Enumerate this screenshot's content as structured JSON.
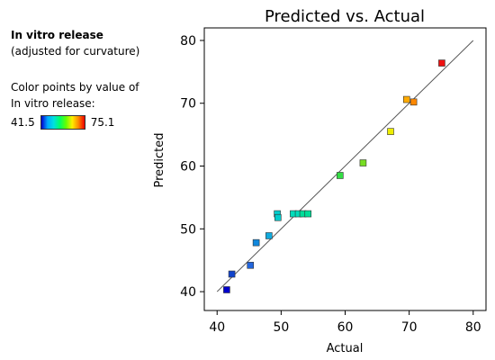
{
  "legend": {
    "title": "In vitro release",
    "subtitle": "(adjusted for curvature)",
    "caption_line1": "Color points by value of",
    "caption_line2": "In vitro release:",
    "min_label": "41.5",
    "max_label": "75.1"
  },
  "colors": {
    "frame": "#000000",
    "fit_line": "#555555",
    "point_border": "#333333"
  },
  "chart_data": {
    "type": "scatter",
    "title": "Predicted vs. Actual",
    "xlabel": "Actual",
    "ylabel": "Predicted",
    "xlim": [
      38,
      82
    ],
    "ylim": [
      37,
      82
    ],
    "xticks": [
      40,
      50,
      60,
      70,
      80
    ],
    "yticks": [
      40,
      50,
      60,
      70,
      80
    ],
    "grid": false,
    "reference_line": {
      "from": [
        40,
        40
      ],
      "to": [
        80,
        80
      ]
    },
    "points": [
      {
        "x": 41.5,
        "y": 40.3,
        "color": "#0000cc"
      },
      {
        "x": 42.3,
        "y": 42.8,
        "color": "#1144cc"
      },
      {
        "x": 45.2,
        "y": 44.2,
        "color": "#2266dd"
      },
      {
        "x": 46.1,
        "y": 47.8,
        "color": "#1188dd"
      },
      {
        "x": 48.1,
        "y": 48.9,
        "color": "#11aadd"
      },
      {
        "x": 49.4,
        "y": 52.4,
        "color": "#00cccc"
      },
      {
        "x": 49.5,
        "y": 51.8,
        "color": "#00cccc"
      },
      {
        "x": 51.9,
        "y": 52.4,
        "color": "#00ddbb"
      },
      {
        "x": 52.7,
        "y": 52.4,
        "color": "#00ddbb"
      },
      {
        "x": 53.4,
        "y": 52.4,
        "color": "#00dd99"
      },
      {
        "x": 54.2,
        "y": 52.4,
        "color": "#00dd99"
      },
      {
        "x": 59.2,
        "y": 58.5,
        "color": "#33dd44"
      },
      {
        "x": 62.8,
        "y": 60.5,
        "color": "#77dd22"
      },
      {
        "x": 67.1,
        "y": 65.5,
        "color": "#eeee00"
      },
      {
        "x": 69.6,
        "y": 70.6,
        "color": "#ffaa00"
      },
      {
        "x": 70.7,
        "y": 70.2,
        "color": "#ff8800"
      },
      {
        "x": 75.1,
        "y": 76.4,
        "color": "#ee1111"
      }
    ]
  }
}
